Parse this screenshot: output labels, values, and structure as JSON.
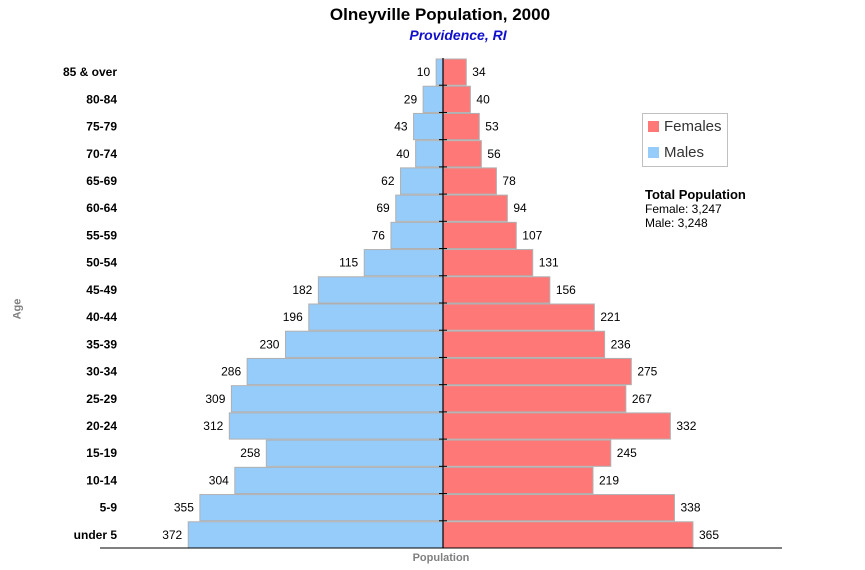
{
  "header": {
    "title": "Olneyville Population, 2000",
    "subtitle": "Providence, RI"
  },
  "legend": {
    "females_label": "Females",
    "males_label": "Males"
  },
  "totals": {
    "heading": "Total Population",
    "female_line": "Female: 3,247",
    "male_line": "Male: 3,248"
  },
  "colors": {
    "female": "#FF7878",
    "male": "#96CCFA",
    "subtitle": "#1010CC"
  },
  "chart_data": {
    "type": "bar",
    "orientation": "horizontal-pyramid",
    "title": "Olneyville Population, 2000",
    "subtitle": "Providence, RI",
    "xlabel": "Population",
    "ylabel": "Age",
    "categories": [
      "85 & over",
      "80-84",
      "75-79",
      "70-74",
      "65-69",
      "60-64",
      "55-59",
      "50-54",
      "45-49",
      "40-44",
      "35-39",
      "30-34",
      "25-29",
      "20-24",
      "15-19",
      "10-14",
      "5-9",
      "under 5"
    ],
    "series": [
      {
        "name": "Males",
        "side": "left",
        "color": "#96CCFA",
        "values": [
          10,
          29,
          43,
          40,
          62,
          69,
          76,
          115,
          182,
          196,
          230,
          286,
          309,
          312,
          258,
          304,
          355,
          372
        ]
      },
      {
        "name": "Females",
        "side": "right",
        "color": "#FF7878",
        "values": [
          34,
          40,
          53,
          56,
          78,
          94,
          107,
          131,
          156,
          221,
          236,
          275,
          267,
          332,
          245,
          219,
          338,
          365
        ]
      }
    ],
    "xlim": [
      -495,
      495
    ],
    "grid": false,
    "legend_position": "top-right"
  }
}
